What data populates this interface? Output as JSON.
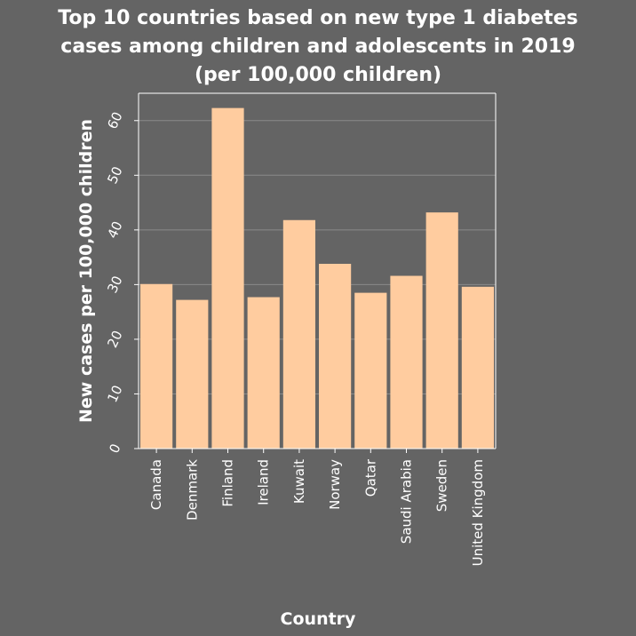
{
  "chart_data": {
    "type": "bar",
    "title_lines": [
      "Top 10 countries based on new type 1 diabetes",
      "cases among children and adolescents in 2019",
      "(per 100,000 children)"
    ],
    "xlabel": "Country",
    "ylabel": "New cases per 100,000 children",
    "categories": [
      "Canada",
      "Denmark",
      "Finland",
      "Ireland",
      "Kuwait",
      "Norway",
      "Qatar",
      "Saudi Arabia",
      "Sweden",
      "United Kingdom"
    ],
    "values": [
      30.1,
      27.2,
      62.3,
      27.7,
      41.8,
      33.8,
      28.5,
      31.6,
      43.2,
      29.6
    ],
    "yticks": [
      0,
      10,
      20,
      30,
      40,
      50,
      60
    ],
    "ylim": [
      0,
      65
    ],
    "grid": "horizontal",
    "colors": {
      "background": "#646464",
      "bar": "#ffcc9f",
      "text": "#ffffff",
      "grid": "#8a8a8a"
    }
  }
}
